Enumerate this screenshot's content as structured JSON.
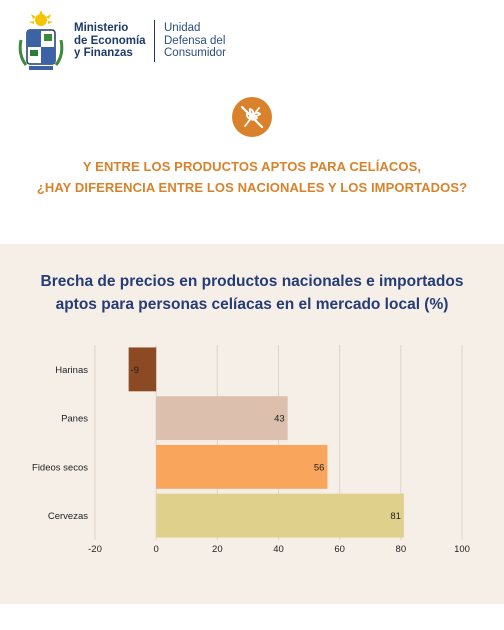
{
  "header": {
    "ministry_line1": "Ministerio",
    "ministry_line2": "de Economía",
    "ministry_line3": "y Finanzas",
    "unit_line1": "Unidad",
    "unit_line2": "Defensa del",
    "unit_line3": "Consumidor"
  },
  "icons": {
    "seal": "coat-of-arms-icon",
    "badge": "no-wheat-icon"
  },
  "question": {
    "line1": "Y ENTRE LOS PRODUCTOS APTOS PARA CELÍACOS,",
    "line2": "¿HAY DIFERENCIA ENTRE LOS NACIONALES Y LOS IMPORTADOS?"
  },
  "colors": {
    "accent": "#d9822b",
    "title": "#253c75",
    "panel": "#f6efe8",
    "harinas": "#8b4a24",
    "panes": "#dcc0ad",
    "fideos": "#f9a55c",
    "cervezas": "#dfd08c"
  },
  "chart_data": {
    "type": "bar",
    "orientation": "horizontal",
    "title_line1": "Brecha de precios en productos nacionales e importados",
    "title_line2": "aptos para personas celíacas en el mercado local (%)",
    "categories": [
      "Harinas",
      "Panes",
      "Fideos secos",
      "Cervezas"
    ],
    "values": [
      -9,
      43,
      56,
      81
    ],
    "value_labels": [
      "-9",
      "43",
      "56",
      "81"
    ],
    "xlim": [
      -20,
      100
    ],
    "xticks": [
      -20,
      0,
      20,
      40,
      60,
      80,
      100
    ],
    "grid": true
  }
}
